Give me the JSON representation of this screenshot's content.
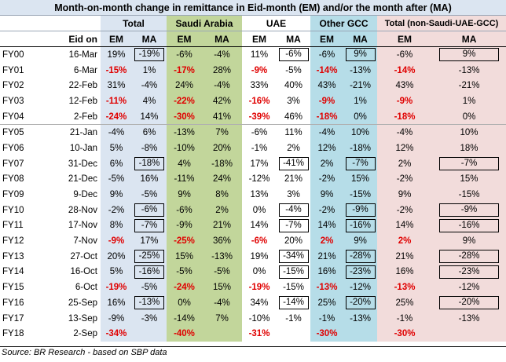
{
  "title": "Month-on-month change in remittance in Eid-month (EM) and/or the month after (MA)",
  "groups": [
    "Total",
    "Saudi Arabia",
    "UAE",
    "Other GCC",
    "Total (non-Saudi-UAE-GCC)"
  ],
  "eid_on_label": "Eid on",
  "em_label": "EM",
  "ma_label": "MA",
  "source": "Source: BR Research - based on SBP data",
  "colors": {
    "total": "#dbe5f1",
    "ksa": "#c2d69b",
    "gcc": "#b6dde8",
    "nongcc": "#f2dcdb",
    "negative": "#e00000"
  },
  "rows": [
    {
      "fy": "FY00",
      "date": "16-Mar",
      "v": [
        "19%",
        "-19%",
        "-6%",
        "-4%",
        "11%",
        "-6%",
        "-6%",
        "9%",
        "-6%",
        "9%"
      ]
    },
    {
      "fy": "FY01",
      "date": "6-Mar",
      "v": [
        "-15%",
        "1%",
        "-17%",
        "28%",
        "-9%",
        "-5%",
        "-14%",
        "-13%",
        "-14%",
        "-13%"
      ]
    },
    {
      "fy": "FY02",
      "date": "22-Feb",
      "v": [
        "31%",
        "-4%",
        "24%",
        "-4%",
        "33%",
        "40%",
        "43%",
        "-21%",
        "43%",
        "-21%"
      ]
    },
    {
      "fy": "FY03",
      "date": "12-Feb",
      "v": [
        "-11%",
        "4%",
        "-22%",
        "42%",
        "-16%",
        "3%",
        "-9%",
        "1%",
        "-9%",
        "1%"
      ]
    },
    {
      "fy": "FY04",
      "date": "2-Feb",
      "v": [
        "-24%",
        "14%",
        "-30%",
        "41%",
        "-39%",
        "46%",
        "-18%",
        "0%",
        "-18%",
        "0%"
      ]
    },
    {
      "fy": "FY05",
      "date": "21-Jan",
      "v": [
        "-4%",
        "6%",
        "-13%",
        "7%",
        "-6%",
        "11%",
        "-4%",
        "10%",
        "-4%",
        "10%"
      ]
    },
    {
      "fy": "FY06",
      "date": "10-Jan",
      "v": [
        "5%",
        "-8%",
        "-10%",
        "20%",
        "-1%",
        "2%",
        "12%",
        "-18%",
        "12%",
        "18%"
      ]
    },
    {
      "fy": "FY07",
      "date": "31-Dec",
      "v": [
        "6%",
        "-18%",
        "4%",
        "-18%",
        "17%",
        "-41%",
        "2%",
        "-7%",
        "2%",
        "-7%"
      ]
    },
    {
      "fy": "FY08",
      "date": "21-Dec",
      "v": [
        "-5%",
        "16%",
        "-11%",
        "24%",
        "-12%",
        "21%",
        "-2%",
        "15%",
        "-2%",
        "15%"
      ]
    },
    {
      "fy": "FY09",
      "date": "9-Dec",
      "v": [
        "9%",
        "-5%",
        "9%",
        "8%",
        "13%",
        "3%",
        "9%",
        "-15%",
        "9%",
        "-15%"
      ]
    },
    {
      "fy": "FY10",
      "date": "28-Nov",
      "v": [
        "-2%",
        "-6%",
        "-6%",
        "2%",
        "0%",
        "-4%",
        "-2%",
        "-9%",
        "-2%",
        "-9%"
      ]
    },
    {
      "fy": "FY11",
      "date": "17-Nov",
      "v": [
        "8%",
        "-7%",
        "-9%",
        "21%",
        "14%",
        "-7%",
        "14%",
        "-16%",
        "14%",
        "-16%"
      ]
    },
    {
      "fy": "FY12",
      "date": "7-Nov",
      "v": [
        "-9%",
        "17%",
        "-25%",
        "36%",
        "-6%",
        "20%",
        "2%",
        "9%",
        "2%",
        "9%"
      ]
    },
    {
      "fy": "FY13",
      "date": "27-Oct",
      "v": [
        "20%",
        "-25%",
        "15%",
        "-13%",
        "19%",
        "-34%",
        "21%",
        "-28%",
        "21%",
        "-28%"
      ]
    },
    {
      "fy": "FY14",
      "date": "16-Oct",
      "v": [
        "5%",
        "-16%",
        "-5%",
        "-5%",
        "0%",
        "-15%",
        "16%",
        "-23%",
        "16%",
        "-23%"
      ]
    },
    {
      "fy": "FY15",
      "date": "6-Oct",
      "v": [
        "-19%",
        "-5%",
        "-24%",
        "15%",
        "-19%",
        "-15%",
        "-13%",
        "-12%",
        "-13%",
        "-12%"
      ]
    },
    {
      "fy": "FY16",
      "date": "25-Sep",
      "v": [
        "16%",
        "-13%",
        "0%",
        "-4%",
        "34%",
        "-14%",
        "25%",
        "-20%",
        "25%",
        "-20%"
      ]
    },
    {
      "fy": "FY17",
      "date": "13-Sep",
      "v": [
        "-9%",
        "-3%",
        "-14%",
        "7%",
        "-10%",
        "-1%",
        "-1%",
        "-13%",
        "-1%",
        "-13%"
      ]
    },
    {
      "fy": "FY18",
      "date": "2-Sep",
      "v": [
        "-34%",
        "",
        "-40%",
        "",
        "-31%",
        "",
        "-30%",
        "",
        "-30%",
        ""
      ]
    }
  ]
}
